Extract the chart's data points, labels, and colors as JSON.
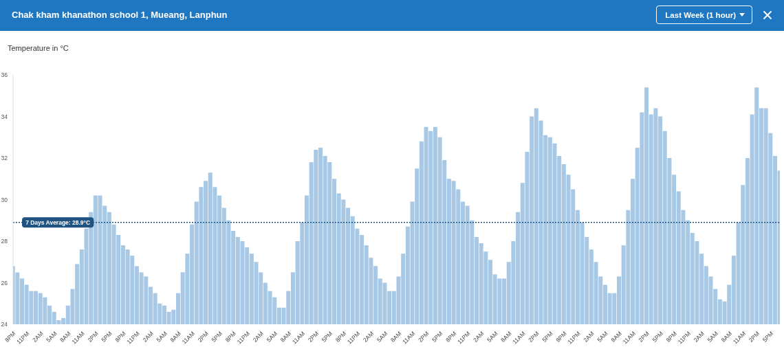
{
  "chart_data": {
    "type": "bar",
    "title": "Chak kham khanathon school 1, Mueang, Lanphun",
    "ylabel": "Temperature in °C",
    "annotations": [
      "Last Week (1 hour)"
    ],
    "categories": [
      "8PM",
      null,
      null,
      "11PM",
      null,
      null,
      "2AM",
      null,
      null,
      "5AM",
      null,
      null,
      "8AM",
      null,
      null,
      "11AM",
      null,
      null,
      "2PM",
      null,
      null,
      "5PM",
      null,
      null,
      "8PM",
      null,
      null,
      "11PM",
      null,
      null,
      "2AM",
      null,
      null,
      "5AM",
      null,
      null,
      "8AM",
      null,
      null,
      "11AM",
      null,
      null,
      "2PM",
      null,
      null,
      "5PM",
      null,
      null,
      "8PM",
      null,
      null,
      "11PM",
      null,
      null,
      "2AM",
      null,
      null,
      "5AM",
      null,
      null,
      "8AM",
      null,
      null,
      "11AM",
      null,
      null,
      "2PM",
      null,
      null,
      "5PM",
      null,
      null,
      "8PM",
      null,
      null,
      "11PM",
      null,
      null,
      "2AM",
      null,
      null,
      "5AM",
      null,
      null,
      "8AM",
      null,
      null,
      "11AM",
      null,
      null,
      "2PM",
      null,
      null,
      "5PM",
      null,
      null,
      "8PM",
      null,
      null,
      "11PM",
      null,
      null,
      "2AM",
      null,
      null,
      "5AM",
      null,
      null,
      "8AM",
      null,
      null,
      "11AM",
      null,
      null,
      "2PM",
      null,
      null,
      "5PM",
      null,
      null,
      "8PM",
      null,
      null,
      "11PM",
      null,
      null,
      "2AM",
      null,
      null,
      "5AM",
      null,
      null,
      "8AM",
      null,
      null,
      "11AM",
      null,
      null,
      "2PM",
      null,
      null,
      "5PM",
      null,
      null,
      "8PM",
      null,
      null,
      "11PM",
      null,
      null,
      "2AM",
      null,
      null,
      "5AM",
      null,
      null,
      "8AM",
      null,
      null,
      "11AM",
      null,
      null,
      "2PM",
      null,
      null,
      "5PM",
      null,
      null
    ],
    "values": [
      26.8,
      26.5,
      26.2,
      25.9,
      25.6,
      25.6,
      25.5,
      25.3,
      24.9,
      24.6,
      24.2,
      24.3,
      24.9,
      25.7,
      26.9,
      27.6,
      28.6,
      29.4,
      30.2,
      30.2,
      29.7,
      29.4,
      28.8,
      28.3,
      27.8,
      27.6,
      27.3,
      26.8,
      26.5,
      26.3,
      25.8,
      25.5,
      25.0,
      24.9,
      24.6,
      24.7,
      25.5,
      26.5,
      27.4,
      28.8,
      29.9,
      30.6,
      30.9,
      31.3,
      30.6,
      30.2,
      29.6,
      29.0,
      28.5,
      28.2,
      28.0,
      27.7,
      27.4,
      27.0,
      26.5,
      26.0,
      25.6,
      25.3,
      24.8,
      24.8,
      25.6,
      26.5,
      28.0,
      28.9,
      30.2,
      31.8,
      32.4,
      32.5,
      32.1,
      31.8,
      31.0,
      30.3,
      30.0,
      29.6,
      29.2,
      28.6,
      28.3,
      27.8,
      27.2,
      26.8,
      26.2,
      26.0,
      25.6,
      25.6,
      26.3,
      27.4,
      28.7,
      29.9,
      31.5,
      32.8,
      33.5,
      33.3,
      33.5,
      33.0,
      31.9,
      31.0,
      30.9,
      30.5,
      29.9,
      29.7,
      29.0,
      28.2,
      27.9,
      27.5,
      27.1,
      26.4,
      26.2,
      26.2,
      27.0,
      28.0,
      29.4,
      30.8,
      32.3,
      34.0,
      34.4,
      33.8,
      33.1,
      33.0,
      32.7,
      32.1,
      31.7,
      31.2,
      30.5,
      29.5,
      28.9,
      28.2,
      27.6,
      27.0,
      26.3,
      25.9,
      25.5,
      25.5,
      26.3,
      27.8,
      29.5,
      31.0,
      32.5,
      34.2,
      35.4,
      34.1,
      34.4,
      34.0,
      33.3,
      32.0,
      31.2,
      30.4,
      29.5,
      29.0,
      28.4,
      28.0,
      27.4,
      26.8,
      26.3,
      25.7,
      25.2,
      25.1,
      25.9,
      27.3,
      28.9,
      30.7,
      32.0,
      34.1,
      35.4,
      34.4,
      34.4,
      33.2,
      32.1,
      31.4
    ],
    "color": "#a8c9e6",
    "ylim": [
      24,
      36
    ],
    "yticks": [
      24,
      26,
      28,
      30,
      32,
      34,
      36
    ],
    "ref_lines": [
      {
        "axis": "y",
        "value": 28.9,
        "label": "7 Days Average: 28.9°C",
        "color": "#1f5382",
        "line_style": "dotted"
      }
    ]
  }
}
